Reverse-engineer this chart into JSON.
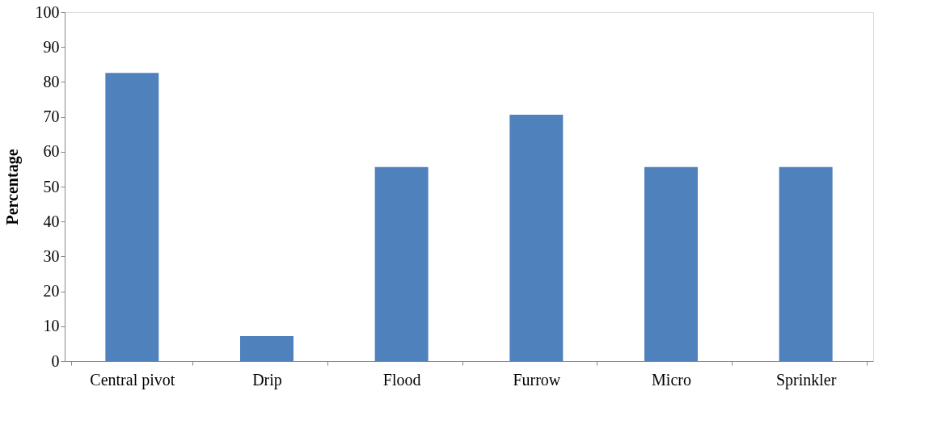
{
  "chart_data": {
    "type": "bar",
    "ylabel": "Percentage",
    "categories": [
      "Central pivot",
      "Drip",
      "Flood",
      "Furrow",
      "Micro",
      "Sprinkler"
    ],
    "values": [
      82.6,
      7.2,
      55.6,
      70.6,
      55.6,
      55.6
    ],
    "color": "#4f81bd",
    "ylim": [
      0,
      100
    ],
    "yticks": [
      0,
      10,
      20,
      30,
      40,
      50,
      60,
      70,
      80,
      90,
      100
    ],
    "grid": false
  }
}
